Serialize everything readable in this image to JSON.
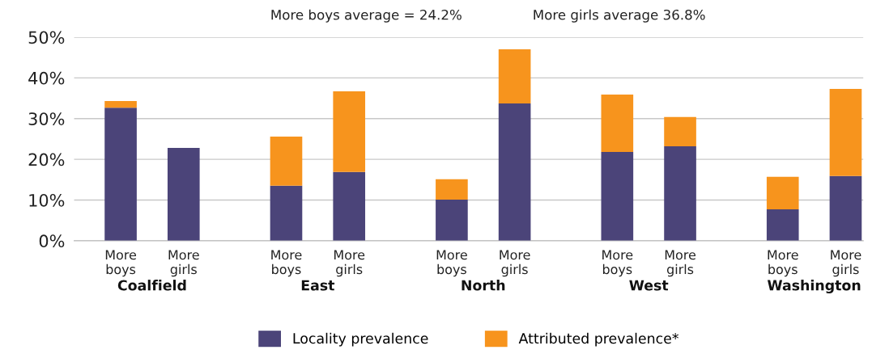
{
  "chart_data": {
    "type": "bar",
    "stacked": true,
    "categories": [
      "More boys",
      "More girls",
      "More boys",
      "More girls",
      "More boys",
      "More girls",
      "More boys",
      "More girls",
      "More boys",
      "More girls"
    ],
    "series": [
      {
        "name": "Locality prevalence",
        "color": "#4b4479",
        "values": [
          32.7,
          22.8,
          13.5,
          16.9,
          10.1,
          33.7,
          21.8,
          23.2,
          7.7,
          15.9
        ]
      },
      {
        "name": "Attributed prevalence*",
        "color": "#f7941d",
        "values": [
          1.6,
          0,
          12.1,
          19.8,
          5.0,
          13.3,
          14.1,
          7.2,
          8.0,
          21.4
        ]
      }
    ],
    "ylim": [
      0,
      50
    ],
    "yticks": [
      {
        "value": 0,
        "label": "0%"
      },
      {
        "value": 10,
        "label": "10%"
      },
      {
        "value": 20,
        "label": "20%"
      },
      {
        "value": 30,
        "label": "30%"
      },
      {
        "value": 40,
        "label": "40%"
      },
      {
        "value": 50,
        "label": "50%"
      }
    ],
    "grid": "y",
    "legend": "bottom",
    "annotations": [
      "More boys average = 24.2%",
      "More girls average 36.8%",
      "Coalfield",
      "East",
      "North",
      "West",
      "Washington"
    ]
  }
}
